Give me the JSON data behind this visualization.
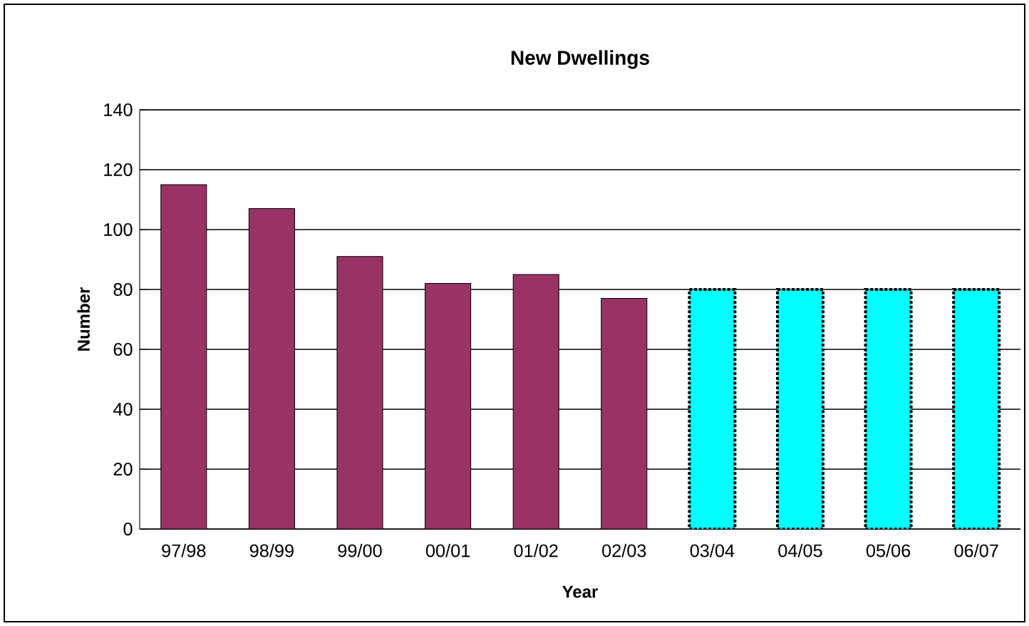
{
  "chart_data": {
    "type": "bar",
    "title": "New Dwellings",
    "xlabel": "Year",
    "ylabel": "Number",
    "categories": [
      "97/98",
      "98/99",
      "99/00",
      "00/01",
      "01/02",
      "02/03",
      "03/04",
      "04/05",
      "05/06",
      "06/07"
    ],
    "series": [
      {
        "color": "#993366",
        "values": [
          115,
          107,
          91,
          82,
          85,
          77,
          null,
          null,
          null,
          null
        ]
      },
      {
        "color": "#00ffff",
        "line_style": "dotted",
        "values": [
          null,
          null,
          null,
          null,
          null,
          null,
          80,
          80,
          80,
          80
        ]
      }
    ],
    "ylim": [
      0,
      140
    ],
    "yticks": [
      0,
      20,
      40,
      60,
      80,
      100,
      120,
      140
    ],
    "grid": "y"
  }
}
